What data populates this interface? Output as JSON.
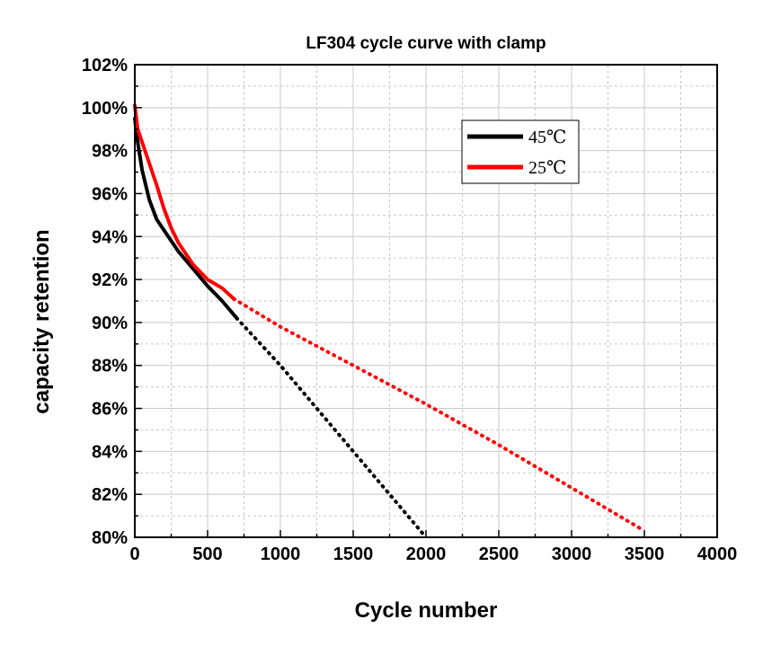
{
  "chart_data": {
    "type": "line",
    "title": "LF304 cycle curve with clamp",
    "xlabel": "Cycle number",
    "ylabel": "capacity retention",
    "xlim": [
      0,
      4000
    ],
    "ylim": [
      80,
      102
    ],
    "x_ticks": [
      0,
      500,
      1000,
      1500,
      2000,
      2500,
      3000,
      3500,
      4000
    ],
    "x_tick_labels": [
      "0",
      "500",
      "1000",
      "1500",
      "2000",
      "2500",
      "3000",
      "3500",
      "4000"
    ],
    "y_ticks": [
      80,
      82,
      84,
      86,
      88,
      90,
      92,
      94,
      96,
      98,
      100,
      102
    ],
    "y_tick_labels": [
      "80%",
      "82%",
      "84%",
      "86%",
      "88%",
      "90%",
      "92%",
      "94%",
      "96%",
      "98%",
      "100%",
      "102%"
    ],
    "grid": true,
    "legend_position": "top-right",
    "series": [
      {
        "name": "45℃",
        "color": "#000000",
        "measured": [
          [
            0,
            99.5
          ],
          [
            20,
            98.4
          ],
          [
            50,
            97.1
          ],
          [
            100,
            95.7
          ],
          [
            150,
            94.8
          ],
          [
            200,
            94.3
          ],
          [
            300,
            93.3
          ],
          [
            400,
            92.5
          ],
          [
            500,
            91.7
          ],
          [
            600,
            91.0
          ],
          [
            700,
            90.2
          ]
        ],
        "extrapolated": [
          [
            700,
            90.2
          ],
          [
            1000,
            88.0
          ],
          [
            1500,
            84.0
          ],
          [
            2000,
            80.0
          ]
        ]
      },
      {
        "name": "25℃",
        "color": "#ff0000",
        "measured": [
          [
            0,
            100.1
          ],
          [
            20,
            99.0
          ],
          [
            50,
            98.4
          ],
          [
            100,
            97.4
          ],
          [
            150,
            96.4
          ],
          [
            200,
            95.3
          ],
          [
            250,
            94.4
          ],
          [
            300,
            93.7
          ],
          [
            400,
            92.7
          ],
          [
            500,
            92.0
          ],
          [
            600,
            91.6
          ],
          [
            680,
            91.1
          ]
        ],
        "extrapolated": [
          [
            680,
            91.1
          ],
          [
            1000,
            89.8
          ],
          [
            1500,
            88.0
          ],
          [
            2000,
            86.2
          ],
          [
            2500,
            84.3
          ],
          [
            3000,
            82.3
          ],
          [
            3500,
            80.3
          ]
        ]
      }
    ]
  }
}
